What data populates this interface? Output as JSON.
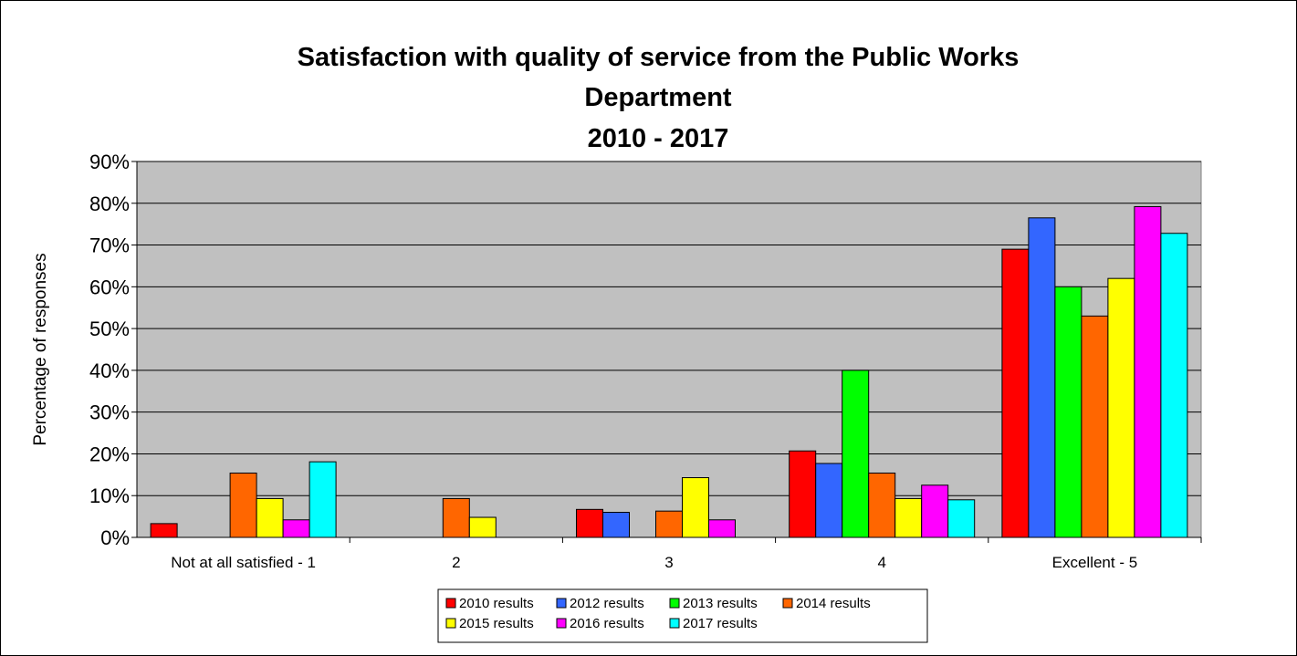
{
  "chart_data": {
    "type": "bar",
    "title": [
      "Satisfaction with quality of service from the Public Works",
      "Department",
      "2010 - 2017"
    ],
    "ylabel": "Percentage of responses",
    "xlabel": "",
    "ylim": [
      0,
      90
    ],
    "ytick_step": 10,
    "ytick_suffix": "%",
    "grid": true,
    "legend_placement": "bottom",
    "plot_background": "#c0c0c0",
    "categories": [
      "Not at all satisfied - 1",
      "2",
      "3",
      "4",
      "Excellent - 5"
    ],
    "series": [
      {
        "name": "2010 results",
        "color": "#ff0000",
        "values": [
          3.3,
          0,
          6.7,
          20.7,
          69
        ]
      },
      {
        "name": "2012 results",
        "color": "#3366ff",
        "values": [
          0,
          0,
          6,
          17.7,
          76.5
        ]
      },
      {
        "name": "2013 results",
        "color": "#00ff00",
        "values": [
          0,
          0,
          0,
          40,
          60
        ]
      },
      {
        "name": "2014 results",
        "color": "#ff6600",
        "values": [
          15.4,
          9.3,
          6.3,
          15.4,
          53
        ]
      },
      {
        "name": "2015 results",
        "color": "#ffff00",
        "values": [
          9.3,
          4.8,
          14.3,
          9.3,
          62
        ]
      },
      {
        "name": "2016 results",
        "color": "#ff00ff",
        "values": [
          4.2,
          0,
          4.2,
          12.5,
          79.2
        ]
      },
      {
        "name": "2017 results",
        "color": "#00ffff",
        "values": [
          18.1,
          0,
          0,
          9,
          72.8
        ]
      }
    ]
  }
}
